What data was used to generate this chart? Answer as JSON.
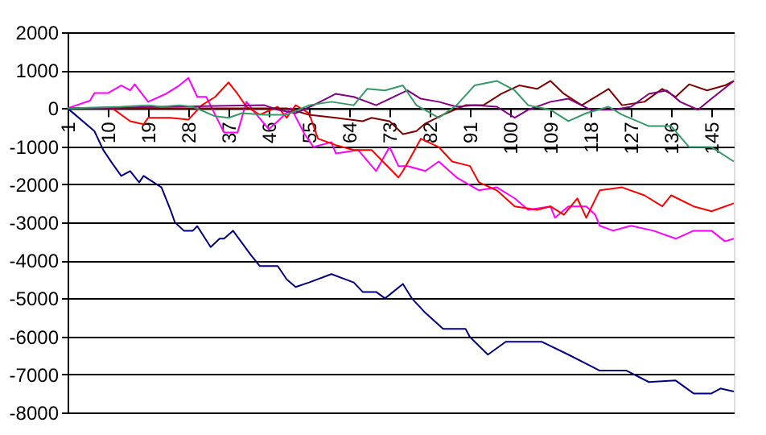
{
  "chart_data": {
    "type": "line",
    "xlim": [
      1,
      150
    ],
    "xticks": [
      1,
      10,
      19,
      28,
      37,
      46,
      55,
      64,
      73,
      82,
      91,
      100,
      109,
      118,
      127,
      136,
      145
    ],
    "ylim": [
      -8000,
      2000
    ],
    "yticks": [
      -8000,
      -7000,
      -6000,
      -5000,
      -4000,
      -3000,
      -2000,
      -1000,
      0,
      1000,
      2000
    ],
    "grid": "y",
    "legend": false,
    "marker": "none",
    "line_style": "solid",
    "series": [
      {
        "color": "#000080",
        "x": [
          1,
          2,
          7,
          9,
          11,
          13,
          15,
          17,
          18,
          22,
          24,
          25,
          27,
          29,
          30,
          33,
          35,
          36,
          38,
          42,
          44,
          48,
          50,
          52,
          55,
          60,
          65,
          67,
          70,
          72,
          76,
          78,
          81,
          85,
          90,
          91,
          95,
          99,
          104,
          107,
          113,
          118,
          120,
          126,
          131,
          137,
          141,
          145,
          147,
          150
        ],
        "values": [
          0,
          -100,
          -600,
          -1100,
          -1450,
          -1780,
          -1650,
          -1950,
          -1780,
          -2080,
          -2670,
          -3000,
          -3220,
          -3220,
          -3100,
          -3650,
          -3430,
          -3430,
          -3220,
          -3860,
          -4150,
          -4150,
          -4500,
          -4700,
          -4580,
          -4360,
          -4580,
          -4830,
          -4830,
          -5000,
          -4620,
          -5000,
          -5380,
          -5800,
          -5800,
          -6020,
          -6480,
          -6140,
          -6140,
          -6140,
          -6480,
          -6780,
          -6900,
          -6900,
          -7200,
          -7160,
          -7500,
          -7500,
          -7370,
          -7450
        ]
      },
      {
        "color": "#ff00ff",
        "x": [
          1,
          6,
          7,
          10,
          13,
          15,
          16,
          19,
          23,
          26,
          28,
          30,
          32,
          34,
          36,
          39,
          41,
          43,
          46,
          48,
          51,
          54,
          56,
          60,
          61,
          66,
          70,
          73,
          75,
          77,
          81,
          84,
          88,
          93,
          97,
          101,
          104,
          109,
          110,
          113,
          117,
          119,
          120,
          123,
          127,
          132,
          137,
          141,
          145,
          148,
          150
        ],
        "values": [
          0,
          200,
          400,
          400,
          600,
          470,
          630,
          170,
          380,
          600,
          800,
          300,
          300,
          -170,
          -640,
          -640,
          170,
          -130,
          -550,
          -340,
          0,
          -680,
          -1020,
          -890,
          -1190,
          -1100,
          -1650,
          -1020,
          -1520,
          -1520,
          -1650,
          -1400,
          -1820,
          -2160,
          -2080,
          -2370,
          -2670,
          -2580,
          -2880,
          -2580,
          -2580,
          -2800,
          -3090,
          -3220,
          -3090,
          -3220,
          -3430,
          -3220,
          -3220,
          -3500,
          -3430
        ]
      },
      {
        "color": "#ff0000",
        "x": [
          1,
          11,
          15,
          18,
          19,
          24,
          28,
          31,
          34,
          37,
          39,
          41,
          44,
          48,
          50,
          52,
          55,
          57,
          61,
          65,
          69,
          75,
          76,
          78,
          80,
          84,
          87,
          91,
          93,
          97,
          101,
          106,
          109,
          112,
          115,
          117,
          120,
          125,
          130,
          134,
          136,
          141,
          145,
          150
        ],
        "values": [
          0,
          0,
          -340,
          -420,
          -250,
          -250,
          -300,
          80,
          300,
          680,
          380,
          40,
          -170,
          40,
          -250,
          80,
          -130,
          -800,
          -970,
          -1100,
          -1100,
          -1820,
          -1650,
          -1230,
          -800,
          -1020,
          -1400,
          -1520,
          -1950,
          -2160,
          -2580,
          -2670,
          -2580,
          -2800,
          -2370,
          -2880,
          -2160,
          -2080,
          -2290,
          -2580,
          -2290,
          -2580,
          -2710,
          -2500
        ]
      },
      {
        "color": "#800000",
        "x": [
          1,
          50,
          55,
          61,
          67,
          69,
          73,
          76,
          79,
          81,
          85,
          90,
          94,
          98,
          102,
          106,
          109,
          112,
          116,
          122,
          125,
          130,
          134,
          137,
          140,
          144,
          148,
          150
        ],
        "values": [
          0,
          0,
          -170,
          -250,
          -340,
          -250,
          -340,
          -680,
          -600,
          -400,
          -170,
          80,
          80,
          380,
          600,
          510,
          720,
          380,
          80,
          510,
          80,
          170,
          510,
          300,
          630,
          470,
          600,
          720
        ]
      },
      {
        "color": "#800080",
        "x": [
          1,
          45,
          48,
          52,
          56,
          61,
          65,
          70,
          77,
          80,
          84,
          88,
          92,
          97,
          101,
          104,
          109,
          113,
          118,
          123,
          127,
          131,
          135,
          138,
          142,
          145,
          150
        ],
        "values": [
          0,
          80,
          -40,
          -130,
          80,
          380,
          300,
          80,
          470,
          250,
          170,
          40,
          80,
          40,
          -250,
          -40,
          170,
          250,
          -40,
          -40,
          40,
          380,
          470,
          170,
          -40,
          250,
          720
        ]
      },
      {
        "color": "#339966",
        "x": [
          1,
          13,
          19,
          22,
          26,
          29,
          34,
          37,
          40,
          45,
          50,
          55,
          60,
          65,
          68,
          72,
          76,
          79,
          84,
          88,
          92,
          97,
          101,
          104,
          109,
          113,
          117,
          122,
          125,
          131,
          136,
          140,
          145,
          150
        ],
        "values": [
          0,
          40,
          80,
          40,
          80,
          40,
          -210,
          -250,
          -130,
          -170,
          -170,
          80,
          170,
          80,
          510,
          470,
          600,
          80,
          -250,
          80,
          600,
          720,
          470,
          80,
          -40,
          -340,
          -130,
          40,
          -170,
          -470,
          -470,
          -1020,
          -1020,
          -1400
        ]
      }
    ]
  }
}
